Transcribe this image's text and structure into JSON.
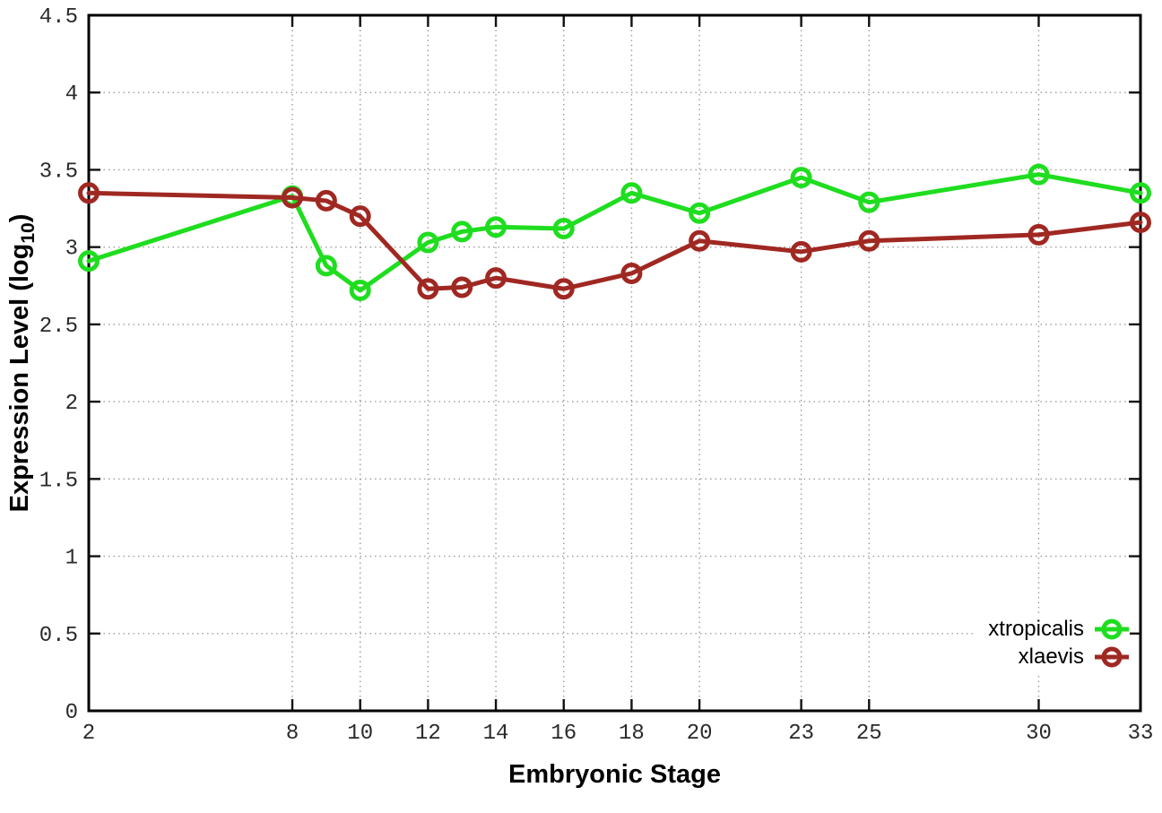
{
  "labels": {
    "x_title": "Embryonic Stage",
    "y_title_main": "Expression Level (log",
    "y_title_sub": "10",
    "y_title_close": ")"
  },
  "chart_data": {
    "type": "line",
    "title": "",
    "xlabel": "Embryonic Stage",
    "ylabel": "Expression Level (log10)",
    "xlim": [
      2,
      33
    ],
    "ylim": [
      0,
      4.5
    ],
    "xticks": [
      2,
      8,
      10,
      12,
      14,
      16,
      18,
      20,
      23,
      25,
      30,
      33
    ],
    "yticks": [
      0,
      0.5,
      1,
      1.5,
      2,
      2.5,
      3,
      3.5,
      4,
      4.5
    ],
    "grid": true,
    "grid_style": "dotted",
    "legend_position": "inside-bottom-right",
    "marker": "open-circle",
    "x": [
      2,
      8,
      9,
      10,
      12,
      13,
      14,
      16,
      18,
      20,
      23,
      25,
      30,
      33
    ],
    "series": [
      {
        "name": "xtropicalis",
        "color": "#1fdd1f",
        "values": [
          2.91,
          3.33,
          2.88,
          2.72,
          3.03,
          3.1,
          3.13,
          3.12,
          3.35,
          3.22,
          3.45,
          3.29,
          3.47,
          3.35
        ]
      },
      {
        "name": "xlaevis",
        "color": "#a02822",
        "values": [
          3.35,
          3.32,
          3.3,
          3.2,
          2.73,
          2.74,
          2.8,
          2.73,
          2.83,
          3.04,
          2.97,
          3.04,
          3.08,
          3.16
        ]
      }
    ]
  }
}
